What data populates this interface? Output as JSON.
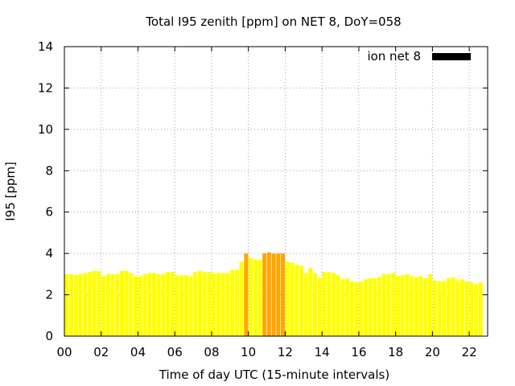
{
  "chart_data": {
    "type": "bar",
    "title": "Total I95 zenith [ppm] on NET 8, DoY=058",
    "xlabel": "Time of day UTC (15-minute intervals)",
    "ylabel": "I95 [ppm]",
    "xlim": [
      0,
      23
    ],
    "ylim": [
      0,
      14
    ],
    "x_ticks": [
      "00",
      "02",
      "04",
      "06",
      "08",
      "10",
      "12",
      "14",
      "16",
      "18",
      "20",
      "22"
    ],
    "y_ticks": [
      "0",
      "2",
      "4",
      "6",
      "8",
      "10",
      "12",
      "14"
    ],
    "grid": true,
    "legend_position": "top-right",
    "colors": {
      "normal": "#ffff00",
      "elevated": "#ffa500",
      "legend": "#000000"
    },
    "series": [
      {
        "name": "ion net 8",
        "interval_hours": 0.25,
        "values": [
          3.0,
          3.0,
          2.95,
          3.0,
          3.05,
          3.1,
          3.15,
          3.15,
          2.9,
          3.0,
          3.0,
          3.0,
          3.15,
          3.15,
          3.05,
          2.9,
          2.9,
          3.0,
          3.05,
          3.05,
          3.0,
          3.0,
          3.1,
          3.1,
          2.95,
          2.95,
          2.95,
          2.9,
          3.1,
          3.15,
          3.1,
          3.1,
          3.05,
          3.05,
          3.05,
          3.05,
          3.2,
          3.2,
          3.6,
          4.0,
          3.8,
          3.7,
          3.7,
          4.0,
          4.05,
          4.0,
          4.0,
          4.0,
          3.6,
          3.55,
          3.45,
          3.4,
          3.05,
          3.3,
          3.05,
          2.8,
          3.1,
          3.1,
          3.05,
          2.95,
          2.75,
          2.8,
          2.65,
          2.6,
          2.65,
          2.75,
          2.8,
          2.8,
          2.85,
          3.0,
          3.0,
          3.05,
          2.9,
          2.95,
          3.0,
          2.9,
          2.85,
          2.9,
          2.8,
          3.0,
          2.7,
          2.65,
          2.65,
          2.8,
          2.85,
          2.7,
          2.75,
          2.65,
          2.6,
          2.5,
          2.6
        ]
      }
    ]
  }
}
